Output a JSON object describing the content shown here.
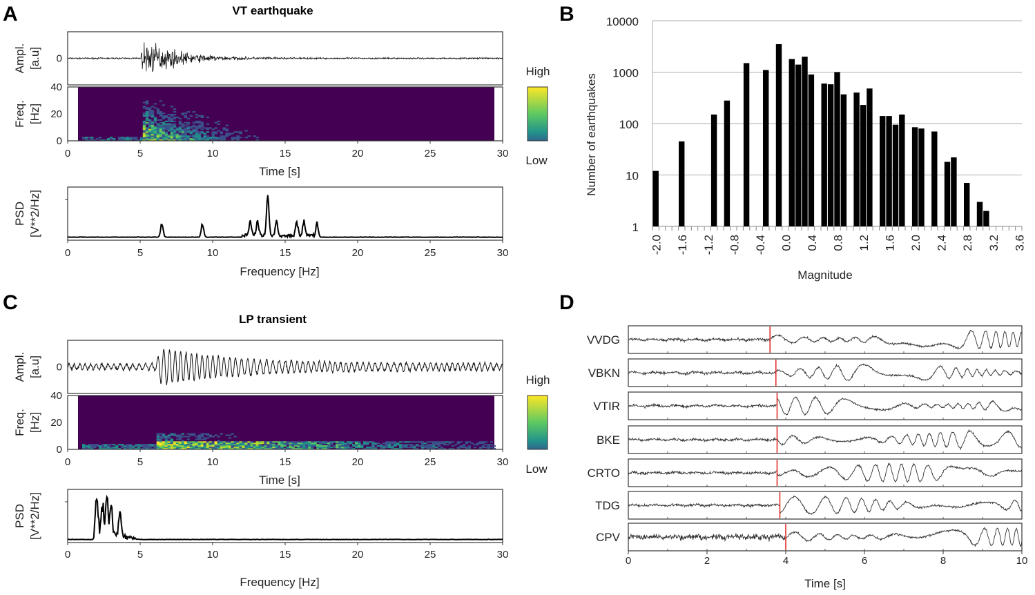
{
  "panels": {
    "a": "A",
    "b": "B",
    "c": "C",
    "d": "D"
  },
  "chart_data": [
    {
      "panel": "A",
      "type": "line",
      "title": "VT earthquake",
      "amplitude": {
        "ylabel": [
          "Ampl.",
          "[a.u]"
        ],
        "yticks": [
          "0"
        ],
        "onset_s": 5
      },
      "spectrogram": {
        "ylabel": [
          "Freq.",
          "[Hz]"
        ],
        "yticks": [
          "0",
          "20",
          "40"
        ],
        "ylim": [
          0,
          40
        ],
        "colorbar": {
          "high": "High",
          "low": "Low"
        }
      },
      "time_axis": {
        "xlabel": "Time [s]",
        "xticks": [
          "0",
          "5",
          "10",
          "15",
          "20",
          "25",
          "30"
        ],
        "xlim": [
          0,
          30
        ]
      },
      "psd": {
        "ylabel": [
          "PSD",
          "[V**2/Hz]"
        ],
        "xlabel": "Frequency [Hz]",
        "xticks": [
          "0",
          "5",
          "10",
          "15",
          "20",
          "25",
          "30"
        ],
        "xlim": [
          0,
          30
        ],
        "peaks_hz": [
          6.5,
          9.3,
          12.6,
          13.1,
          13.8,
          14.4,
          15.8,
          16.3,
          17.2
        ],
        "peak_max_hz": 13.8
      }
    },
    {
      "panel": "B",
      "type": "bar",
      "title": "",
      "xlabel": "Magnitude",
      "ylabel": "Number of earthquakes",
      "yscale": "log",
      "ylim": [
        1,
        10000
      ],
      "yticks": [
        "1",
        "10",
        "100",
        "1000",
        "10000"
      ],
      "xticks": [
        "-2.0",
        "-1.6",
        "-1.2",
        "-0.8",
        "-0.4",
        "0.0",
        "0.4",
        "0.8",
        "1.2",
        "1.6",
        "2.0",
        "2.4",
        "2.8",
        "3.2",
        "3.6"
      ],
      "x": [
        -2.0,
        -1.6,
        -1.1,
        -0.9,
        -0.6,
        -0.3,
        -0.1,
        0.1,
        0.2,
        0.3,
        0.4,
        0.6,
        0.7,
        0.8,
        0.9,
        1.1,
        1.2,
        1.3,
        1.5,
        1.6,
        1.7,
        1.8,
        2.0,
        2.1,
        2.3,
        2.5,
        2.6,
        2.8,
        3.0,
        3.1
      ],
      "values": [
        12,
        45,
        150,
        280,
        1500,
        1100,
        3500,
        1800,
        1400,
        2000,
        900,
        600,
        580,
        1000,
        370,
        400,
        230,
        480,
        140,
        140,
        95,
        150,
        85,
        80,
        70,
        18,
        22,
        7,
        3,
        2
      ],
      "grid": true
    },
    {
      "panel": "C",
      "type": "line",
      "title": "LP transient",
      "amplitude": {
        "ylabel": [
          "Ampl.",
          "[a.u]"
        ],
        "yticks": [
          "0"
        ],
        "onset_s": 6
      },
      "spectrogram": {
        "ylabel": [
          "Freq.",
          "[Hz]"
        ],
        "yticks": [
          "0",
          "20",
          "40"
        ],
        "ylim": [
          0,
          40
        ],
        "colorbar": {
          "high": "High",
          "low": "Low"
        }
      },
      "time_axis": {
        "xlabel": "Time [s]",
        "xticks": [
          "0",
          "5",
          "10",
          "15",
          "20",
          "25",
          "30"
        ],
        "xlim": [
          0,
          30
        ]
      },
      "psd": {
        "ylabel": [
          "PSD",
          "[V**2/Hz]"
        ],
        "xlabel": "Frequency [Hz]",
        "xticks": [
          "0",
          "5",
          "10",
          "15",
          "20",
          "25",
          "30"
        ],
        "xlim": [
          0,
          30
        ],
        "peaks_hz": [
          2.0,
          2.4,
          2.7,
          3.0,
          3.6
        ],
        "peak_max_hz": 2.7
      }
    },
    {
      "panel": "D",
      "type": "line",
      "xlabel": "Time [s]",
      "xticks": [
        "0",
        "2",
        "4",
        "6",
        "8",
        "10"
      ],
      "xlim": [
        0,
        10
      ],
      "stations": [
        "VVDG",
        "VBKN",
        "VTIR",
        "BKE",
        "CRTO",
        "TDG",
        "CPV"
      ],
      "pick_times_s": [
        3.6,
        3.75,
        3.78,
        3.78,
        3.78,
        3.85,
        4.0
      ],
      "pick_color": "#e0302a"
    }
  ]
}
